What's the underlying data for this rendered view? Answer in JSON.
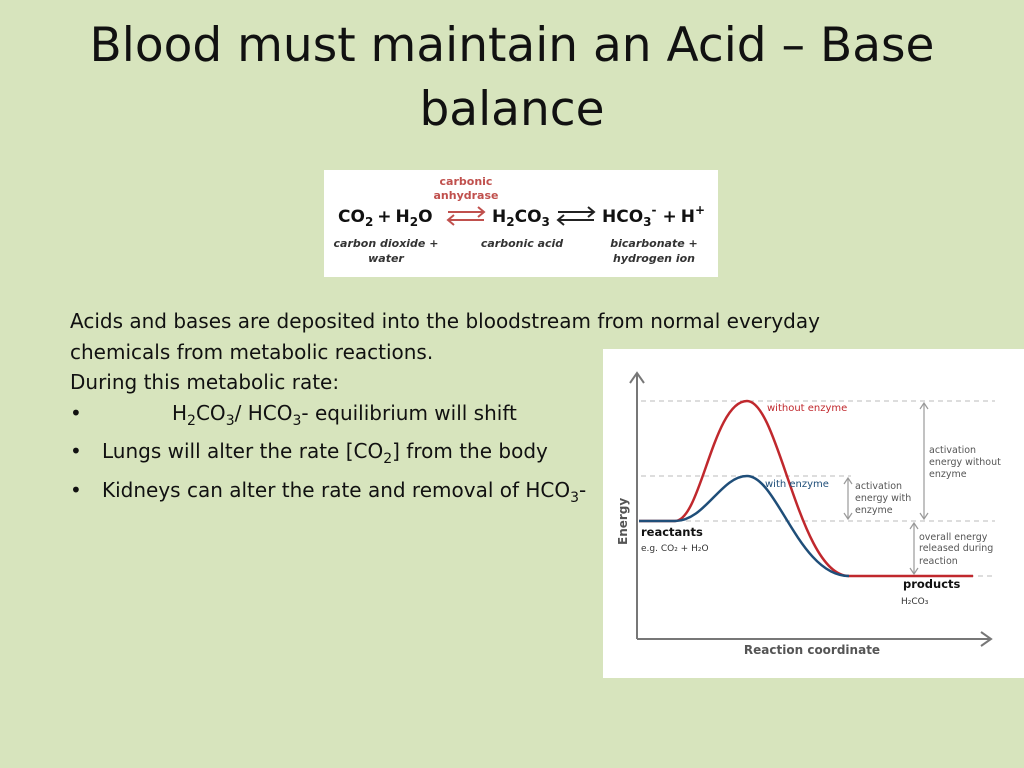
{
  "title": {
    "line1": "Blood must maintain an Acid – Base",
    "line2": "balance"
  },
  "equation": {
    "enzyme_line1": "carbonic",
    "enzyme_line2": "anhydrase",
    "term1": "CO",
    "term1_sub": "2",
    "plus1": "+",
    "term2": "H",
    "term2_sub": "2",
    "term2_end": "O",
    "term3": "H",
    "term3_sub1": "2",
    "term3_mid": "CO",
    "term3_sub2": "3",
    "term4": "HCO",
    "term4_sub": "3",
    "term4_sup": "-",
    "plus2": "+",
    "term5": "H",
    "term5_sup": "+",
    "label_left1": "carbon dioxide  +",
    "label_left2": "water",
    "label_mid": "carbonic acid",
    "label_right1": "bicarbonate +",
    "label_right2": "hydrogen ion",
    "colors": {
      "enzyme": "#c0504d",
      "arrow_red": "#c0504d",
      "arrow_black": "#222222"
    }
  },
  "body": {
    "line1": "Acids and bases are deposited into the bloodstream from normal everyday",
    "line2": "chemicals from metabolic reactions.",
    "line3": "During this metabolic  rate:",
    "bullet": "•",
    "b1_a": "H",
    "b1_sub1": "2",
    "b1_b": "CO",
    "b1_sub2": "3",
    "b1_c": "/ HCO",
    "b1_sub3": "3",
    "b1_d": "- equilibrium will shift",
    "b2_a": "Lungs will alter the rate [CO",
    "b2_sub": "2",
    "b2_b": "] from the body",
    "b3_a": "Kidneys can alter the rate and removal of HCO",
    "b3_sub": "3",
    "b3_b": "-"
  },
  "graph": {
    "y_axis_label": "Energy",
    "x_axis_label": "Reaction coordinate",
    "without_enzyme": "without enzyme",
    "with_enzyme": "with enzyme",
    "act_without_1": "activation",
    "act_without_2": "energy without",
    "act_without_3": "enzyme",
    "act_with_1": "activation",
    "act_with_2": "energy with",
    "act_with_3": "enzyme",
    "overall_1": "overall energy",
    "overall_2": "released during",
    "overall_3": "reaction",
    "reactants": "reactants",
    "reactants_eg": "e.g. CO₂ + H₂O",
    "products": "products",
    "products_eg": "H₂CO₃",
    "colors": {
      "without": "#c0282d",
      "with": "#1f4e79",
      "annotation": "#555555"
    }
  }
}
